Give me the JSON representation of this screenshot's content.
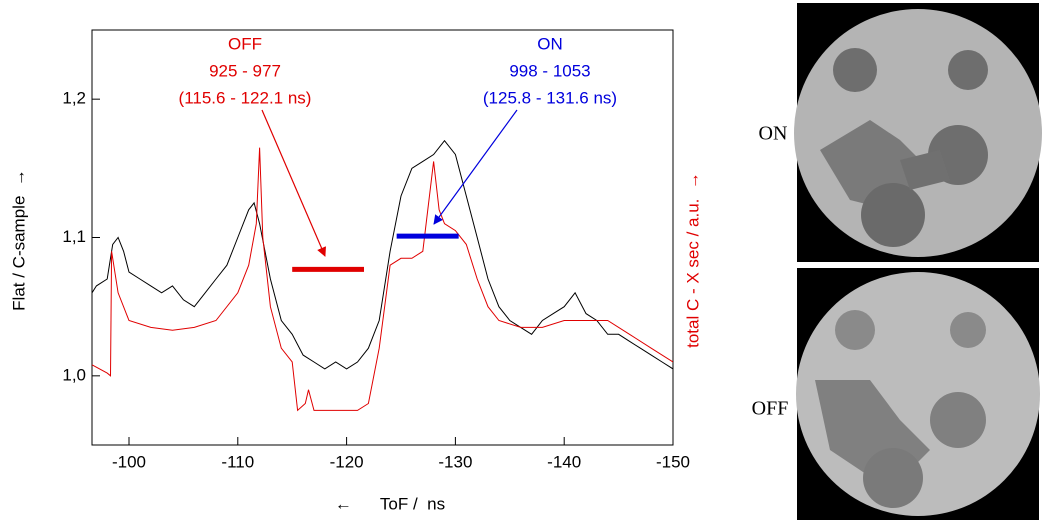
{
  "chart_data": {
    "type": "line",
    "xlabel": "←      ToF /  ns",
    "ylabel": "Flat / C-sample  →",
    "y2label": "total C - X sec / a.u.  →",
    "xlim": [
      -96.6,
      -150
    ],
    "xticks": [
      -100,
      -110,
      -120,
      -130,
      -140,
      -150
    ],
    "ylim": [
      0.95,
      1.25
    ],
    "yticks": [
      {
        "value": 1.0,
        "label": "1,0"
      },
      {
        "value": 1.1,
        "label": "1,1"
      },
      {
        "value": 1.2,
        "label": "1,2"
      }
    ],
    "series": [
      {
        "color": "#000000",
        "x": [
          -96.6,
          -97,
          -98,
          -98.5,
          -99,
          -99.5,
          -100,
          -101,
          -102,
          -103,
          -104,
          -105,
          -106,
          -107,
          -108,
          -109,
          -110,
          -111,
          -111.5,
          -112,
          -113,
          -114,
          -115,
          -116,
          -117,
          -118,
          -119,
          -120,
          -121,
          -122,
          -123,
          -124,
          -125,
          -126,
          -127,
          -128,
          -129,
          -130,
          -131,
          -132,
          -133,
          -134,
          -135,
          -136,
          -137,
          -138,
          -139,
          -140,
          -141,
          -142,
          -143,
          -144,
          -145,
          -146,
          -147,
          -148,
          -149,
          -150
        ],
        "values": [
          1.06,
          1.065,
          1.07,
          1.095,
          1.1,
          1.09,
          1.075,
          1.07,
          1.065,
          1.06,
          1.065,
          1.055,
          1.05,
          1.06,
          1.07,
          1.08,
          1.1,
          1.12,
          1.125,
          1.11,
          1.07,
          1.04,
          1.03,
          1.015,
          1.01,
          1.005,
          1.01,
          1.005,
          1.01,
          1.02,
          1.04,
          1.09,
          1.13,
          1.15,
          1.155,
          1.16,
          1.17,
          1.16,
          1.13,
          1.1,
          1.07,
          1.05,
          1.04,
          1.035,
          1.03,
          1.04,
          1.045,
          1.05,
          1.06,
          1.045,
          1.04,
          1.03,
          1.03,
          1.025,
          1.02,
          1.015,
          1.01,
          1.005
        ]
      },
      {
        "color": "#e00000",
        "axis": "y2",
        "x": [
          -96.6,
          -98,
          -98.3,
          -98.4,
          -99,
          -100,
          -102,
          -104,
          -106,
          -108,
          -110,
          -111,
          -111.7,
          -112,
          -112.3,
          -113,
          -114,
          -115,
          -115.5,
          -116.2,
          -116.5,
          -117,
          -119,
          -121,
          -122,
          -123,
          -124,
          -125,
          -126,
          -127,
          -128,
          -128.5,
          -129,
          -130,
          -131,
          -132,
          -133,
          -134,
          -136,
          -138,
          -140,
          -142,
          -144,
          -146,
          -148,
          -150
        ],
        "values": [
          1.008,
          1.002,
          1.0,
          1.09,
          1.06,
          1.04,
          1.035,
          1.033,
          1.035,
          1.04,
          1.06,
          1.08,
          1.11,
          1.165,
          1.1,
          1.05,
          1.02,
          1.01,
          0.975,
          0.98,
          0.99,
          0.975,
          0.975,
          0.975,
          0.98,
          1.02,
          1.08,
          1.085,
          1.085,
          1.09,
          1.155,
          1.12,
          1.11,
          1.105,
          1.095,
          1.07,
          1.05,
          1.04,
          1.035,
          1.035,
          1.04,
          1.04,
          1.04,
          1.03,
          1.02,
          1.01
        ]
      }
    ],
    "windows": [
      {
        "x": [
          -115,
          -121.6
        ],
        "y": 1.077,
        "color": "#e00000"
      },
      {
        "x": [
          -124.6,
          -130.3
        ],
        "y": 1.101,
        "color": "#0000dd"
      }
    ],
    "annotations": {
      "off": {
        "color": "#e00000",
        "lines": [
          "OFF",
          "925 - 977",
          "(115.6 - 122.1 ns)"
        ]
      },
      "on": {
        "color": "#0000dd",
        "lines": [
          "ON",
          "998 - 1053",
          "(125.8 - 131.6 ns)"
        ]
      }
    },
    "images": [
      {
        "label": "ON"
      },
      {
        "label": "OFF"
      }
    ]
  }
}
